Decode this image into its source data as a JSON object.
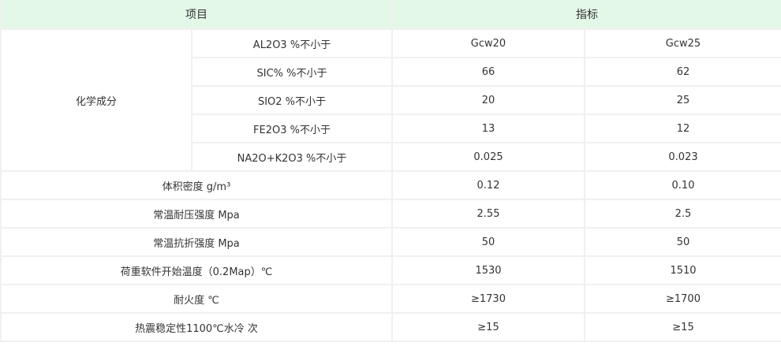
{
  "header": {
    "item": "项目",
    "index": "指标"
  },
  "group_label": "化学成分",
  "chem_rows": [
    {
      "label": "AL2O3 %不小于",
      "v1": "Gcw20",
      "v2": "Gcw25"
    },
    {
      "label": "SIC% %不小于",
      "v1": "66",
      "v2": "62"
    },
    {
      "label": "SIO2 %不小于",
      "v1": "20",
      "v2": "25"
    },
    {
      "label": "FE2O3 %不小于",
      "v1": "13",
      "v2": "12"
    },
    {
      "label": "NA2O+K2O3 %不小于",
      "v1": "0.025",
      "v2": "0.023"
    }
  ],
  "rows": [
    {
      "label": "体积密度 g/m³",
      "v1": "0.12",
      "v2": "0.10"
    },
    {
      "label": "常温耐压强度 Mpa",
      "v1": "2.55",
      "v2": "2.5"
    },
    {
      "label": "常温抗折强度 Mpa",
      "v1": "50",
      "v2": "50"
    },
    {
      "label": "荷重软件开始温度（0.2Map）℃",
      "v1": "1530",
      "v2": "1510"
    },
    {
      "label": "耐火度 ℃",
      "v1": "≥1730",
      "v2": "≥1700"
    },
    {
      "label": "热震稳定性1100℃水冷 次",
      "v1": "≥15",
      "v2": "≥15"
    }
  ],
  "colors": {
    "header_bg": "#e4f8e8",
    "border": "#f0f0f0"
  }
}
